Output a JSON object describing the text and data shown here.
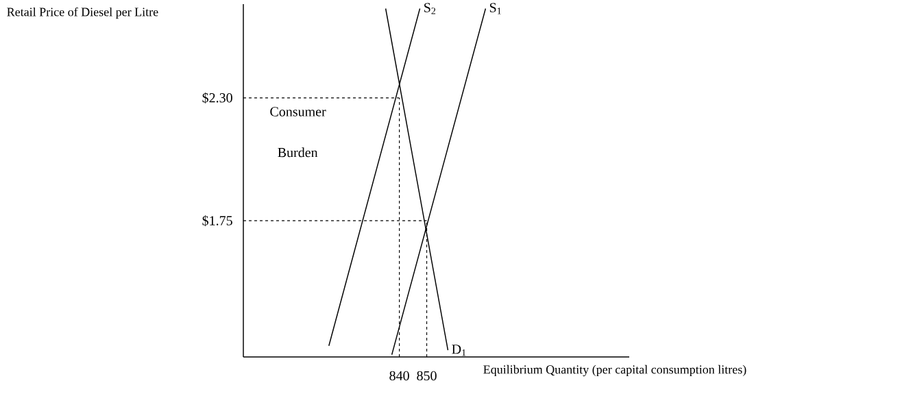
{
  "chart_data": {
    "type": "line",
    "xlabel": "Equilibrium Quantity (per capital consumption litres)",
    "ylabel": "Retail Price of Diesel per Litre",
    "xlim": [
      783,
      924
    ],
    "ylim": [
      1.14,
      2.72
    ],
    "xticks": [
      840,
      850
    ],
    "yticks": [
      {
        "value": 2.3,
        "label": "$2.30"
      },
      {
        "value": 1.75,
        "label": "$1.75"
      }
    ],
    "series": [
      {
        "name": "S$_{2}$",
        "color": "#000000",
        "x": [
          814.25,
          847.5
        ],
        "values": [
          1.19,
          2.7
        ]
      },
      {
        "name": "S$_{1}$",
        "color": "#000000",
        "x": [
          837.25,
          871.5
        ],
        "values": [
          1.15,
          2.7
        ]
      },
      {
        "name": "D$_{1}$",
        "color": "#000000",
        "x": [
          835,
          857.75
        ],
        "values": [
          2.7,
          1.17
        ]
      }
    ],
    "ref_lines": [
      {
        "axis": "y",
        "value": 2.3,
        "line_style": "dashed"
      },
      {
        "axis": "x",
        "value": 840,
        "line_style": "dashed"
      },
      {
        "axis": "y",
        "value": 1.75,
        "line_style": "dashed"
      },
      {
        "axis": "x",
        "value": 850,
        "line_style": "dashed"
      }
    ],
    "annotations": [
      "Consumer",
      "Burden"
    ],
    "line_style": "solid",
    "marker": "none"
  }
}
